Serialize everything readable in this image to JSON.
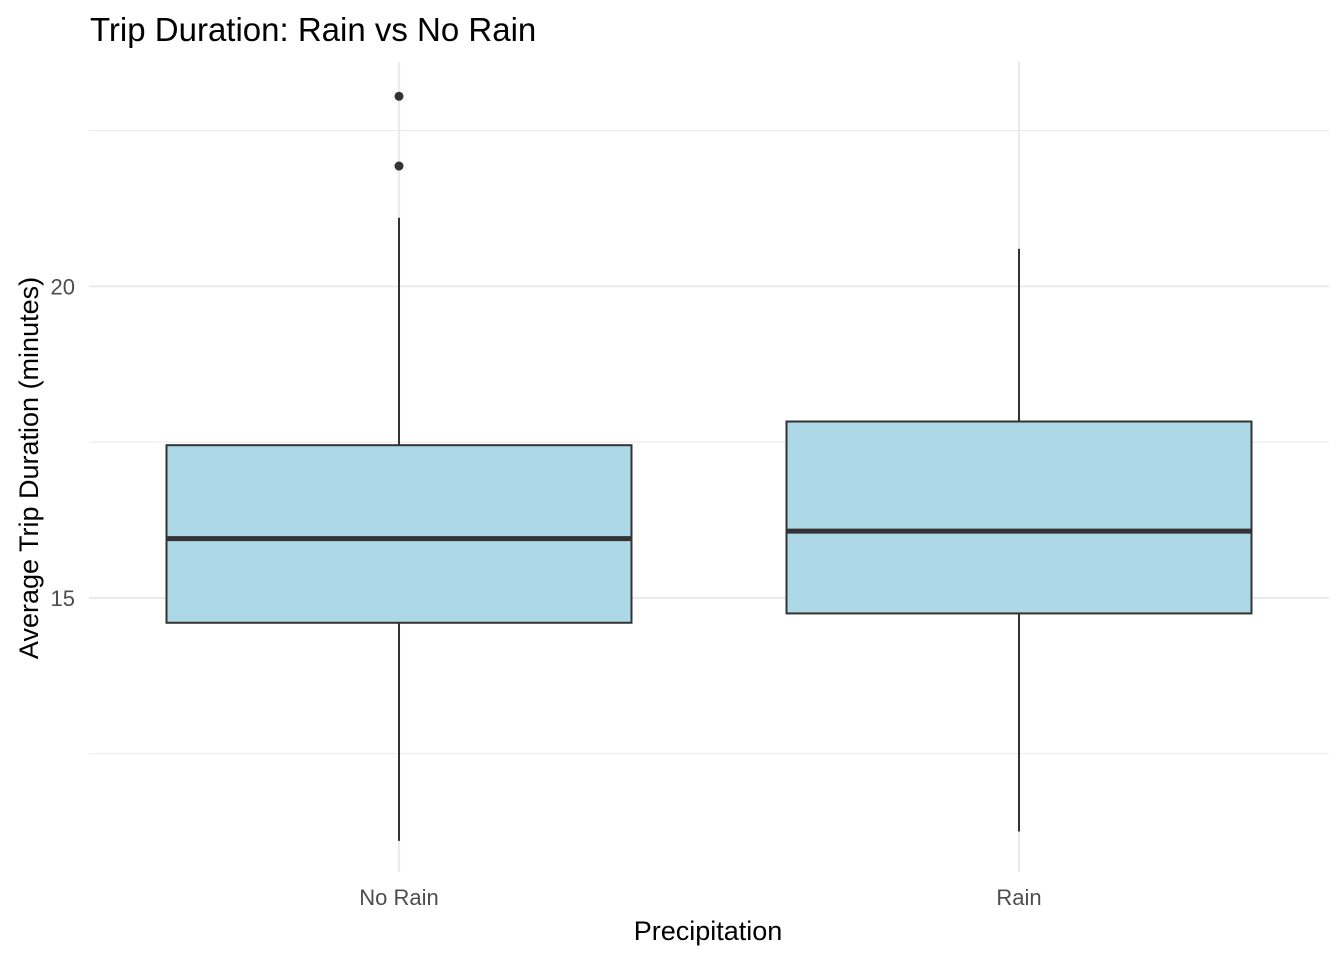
{
  "chart_data": {
    "type": "boxplot",
    "title": "Trip Duration: Rain vs No Rain",
    "xlabel": "Precipitation",
    "ylabel": "Average Trip Duration (minutes)",
    "categories": [
      "No Rain",
      "Rain"
    ],
    "ylim": [
      10.6,
      23.6
    ],
    "yticks": [
      15,
      20
    ],
    "y_minor_gridlines": [
      12.5,
      17.5,
      22.5
    ],
    "grid": true,
    "legend": "none",
    "box_fill": "#add8e6",
    "box_stroke": "#333333",
    "outlier_color": "#333333",
    "boxes": [
      {
        "category": "No Rain",
        "whisker_low": 11.1,
        "q1": 14.6,
        "median": 15.95,
        "q3": 17.45,
        "whisker_high": 21.1,
        "outliers": [
          23.05,
          21.93
        ]
      },
      {
        "category": "Rain",
        "whisker_low": 11.25,
        "q1": 14.75,
        "median": 16.07,
        "q3": 17.83,
        "whisker_high": 20.6,
        "outliers": []
      }
    ]
  }
}
